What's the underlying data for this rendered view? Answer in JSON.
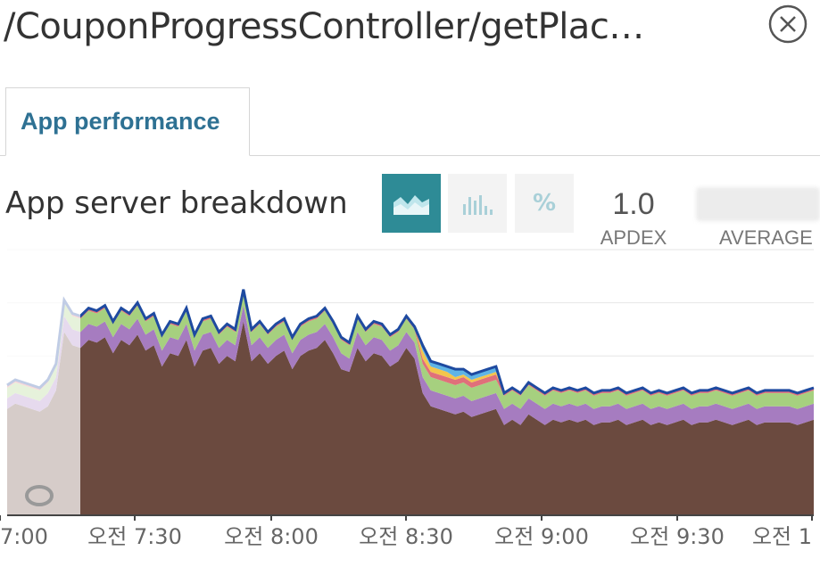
{
  "header": {
    "title": "/CouponProgressController/getPlac…",
    "close_icon": "close-circle-icon"
  },
  "tabs": [
    {
      "label": "App performance",
      "active": true
    }
  ],
  "section": {
    "title": "App server breakdown",
    "modes": [
      {
        "name": "area-chart-icon",
        "active": true
      },
      {
        "name": "bar-chart-icon",
        "active": false
      },
      {
        "name": "percent",
        "label": "%",
        "active": false
      }
    ]
  },
  "stats": {
    "apdex_value": "1.0",
    "apdex_label": "APDEX",
    "average_label": "AVERAGE"
  },
  "colors": {
    "accent": "#2e8b96",
    "tab_text": "#2e7193",
    "layer_base": "#6b4a3f",
    "layer_2": "#a67cc0",
    "layer_3": "#a6d07f",
    "layer_4": "#e0707a",
    "layer_5": "#f3c54c",
    "layer_6": "#5fb4e5",
    "top_line": "#1e4aa0"
  },
  "chart_data": {
    "type": "area",
    "stacked": true,
    "x_tick_labels": [
      "7:00",
      "오전 7:30",
      "오전 8:00",
      "오전 8:30",
      "오전 9:00",
      "오전 9:30",
      "오전 1"
    ],
    "grid": true,
    "ylim": [
      0,
      1
    ],
    "series": [
      {
        "values": [
          0.4,
          0.42,
          0.41,
          0.4,
          0.39,
          0.41,
          0.47,
          0.69,
          0.64,
          0.63,
          0.66,
          0.65,
          0.67,
          0.61,
          0.66,
          0.64,
          0.68,
          0.62,
          0.64,
          0.56,
          0.61,
          0.6,
          0.66,
          0.56,
          0.62,
          0.63,
          0.57,
          0.6,
          0.58,
          0.73,
          0.58,
          0.61,
          0.57,
          0.6,
          0.62,
          0.55,
          0.6,
          0.62,
          0.63,
          0.66,
          0.61,
          0.55,
          0.54,
          0.63,
          0.58,
          0.61,
          0.6,
          0.56,
          0.58,
          0.63,
          0.59,
          0.46,
          0.41,
          0.4,
          0.39,
          0.38,
          0.39,
          0.37,
          0.38,
          0.39,
          0.4,
          0.34,
          0.36,
          0.34,
          0.38,
          0.36,
          0.34,
          0.36,
          0.35,
          0.36,
          0.35,
          0.36,
          0.34,
          0.35,
          0.35,
          0.36,
          0.34,
          0.35,
          0.36,
          0.34,
          0.35,
          0.34,
          0.35,
          0.36,
          0.34,
          0.35,
          0.35,
          0.36,
          0.35,
          0.34,
          0.35,
          0.36,
          0.34,
          0.35,
          0.35,
          0.35,
          0.35,
          0.34,
          0.35,
          0.36
        ]
      },
      {
        "values": [
          0.04,
          0.04,
          0.04,
          0.04,
          0.04,
          0.05,
          0.05,
          0.06,
          0.06,
          0.06,
          0.06,
          0.06,
          0.06,
          0.06,
          0.06,
          0.06,
          0.06,
          0.06,
          0.06,
          0.06,
          0.06,
          0.06,
          0.06,
          0.06,
          0.06,
          0.06,
          0.06,
          0.06,
          0.06,
          0.06,
          0.06,
          0.06,
          0.06,
          0.06,
          0.06,
          0.06,
          0.06,
          0.06,
          0.06,
          0.06,
          0.06,
          0.06,
          0.05,
          0.06,
          0.06,
          0.06,
          0.06,
          0.06,
          0.06,
          0.06,
          0.06,
          0.06,
          0.06,
          0.06,
          0.06,
          0.06,
          0.06,
          0.06,
          0.06,
          0.06,
          0.06,
          0.06,
          0.06,
          0.06,
          0.06,
          0.06,
          0.06,
          0.06,
          0.06,
          0.06,
          0.06,
          0.06,
          0.06,
          0.06,
          0.06,
          0.06,
          0.06,
          0.06,
          0.06,
          0.06,
          0.06,
          0.06,
          0.06,
          0.06,
          0.06,
          0.06,
          0.06,
          0.06,
          0.06,
          0.06,
          0.06,
          0.06,
          0.06,
          0.06,
          0.06,
          0.06,
          0.06,
          0.06,
          0.06,
          0.06
        ]
      },
      {
        "values": [
          0.04,
          0.04,
          0.04,
          0.04,
          0.04,
          0.04,
          0.04,
          0.05,
          0.05,
          0.05,
          0.05,
          0.05,
          0.05,
          0.05,
          0.05,
          0.05,
          0.05,
          0.05,
          0.05,
          0.05,
          0.05,
          0.05,
          0.05,
          0.05,
          0.05,
          0.05,
          0.05,
          0.05,
          0.05,
          0.05,
          0.05,
          0.05,
          0.05,
          0.05,
          0.05,
          0.05,
          0.05,
          0.05,
          0.05,
          0.05,
          0.05,
          0.05,
          0.05,
          0.05,
          0.05,
          0.05,
          0.05,
          0.05,
          0.05,
          0.05,
          0.05,
          0.05,
          0.05,
          0.05,
          0.05,
          0.05,
          0.05,
          0.05,
          0.05,
          0.05,
          0.05,
          0.05,
          0.05,
          0.05,
          0.05,
          0.05,
          0.05,
          0.05,
          0.05,
          0.05,
          0.05,
          0.05,
          0.05,
          0.05,
          0.05,
          0.05,
          0.05,
          0.05,
          0.05,
          0.05,
          0.05,
          0.05,
          0.05,
          0.05,
          0.05,
          0.05,
          0.05,
          0.05,
          0.05,
          0.05,
          0.05,
          0.05,
          0.05,
          0.05,
          0.05,
          0.05,
          0.05,
          0.05,
          0.05,
          0.05
        ]
      },
      {
        "values": [
          0.01,
          0.01,
          0.01,
          0.01,
          0.01,
          0.01,
          0.01,
          0.01,
          0.01,
          0.01,
          0.01,
          0.01,
          0.01,
          0.01,
          0.01,
          0.01,
          0.01,
          0.01,
          0.01,
          0.01,
          0.01,
          0.01,
          0.01,
          0.01,
          0.01,
          0.01,
          0.01,
          0.01,
          0.01,
          0.01,
          0.01,
          0.01,
          0.01,
          0.01,
          0.01,
          0.01,
          0.01,
          0.01,
          0.01,
          0.01,
          0.01,
          0.01,
          0.01,
          0.01,
          0.01,
          0.01,
          0.01,
          0.01,
          0.01,
          0.01,
          0.01,
          0.02,
          0.02,
          0.02,
          0.02,
          0.02,
          0.02,
          0.02,
          0.02,
          0.02,
          0.02,
          0.01,
          0.01,
          0.01,
          0.01,
          0.01,
          0.01,
          0.01,
          0.01,
          0.01,
          0.01,
          0.01,
          0.01,
          0.01,
          0.01,
          0.01,
          0.01,
          0.01,
          0.01,
          0.01,
          0.01,
          0.01,
          0.01,
          0.01,
          0.01,
          0.01,
          0.01,
          0.01,
          0.01,
          0.01,
          0.01,
          0.01,
          0.01,
          0.01,
          0.01,
          0.01,
          0.01,
          0.01,
          0.01,
          0.01
        ]
      },
      {
        "values": [
          0.0,
          0.0,
          0.0,
          0.0,
          0.0,
          0.0,
          0.0,
          0.0,
          0.0,
          0.0,
          0.0,
          0.0,
          0.0,
          0.0,
          0.0,
          0.0,
          0.0,
          0.0,
          0.0,
          0.0,
          0.0,
          0.0,
          0.0,
          0.0,
          0.0,
          0.0,
          0.0,
          0.0,
          0.0,
          0.0,
          0.0,
          0.0,
          0.0,
          0.0,
          0.0,
          0.0,
          0.0,
          0.0,
          0.0,
          0.0,
          0.0,
          0.0,
          0.0,
          0.0,
          0.0,
          0.0,
          0.0,
          0.0,
          0.0,
          0.0,
          0.0,
          0.03,
          0.02,
          0.02,
          0.02,
          0.01,
          0.01,
          0.01,
          0.01,
          0.01,
          0.01,
          0.0,
          0.0,
          0.0,
          0.0,
          0.0,
          0.0,
          0.0,
          0.0,
          0.0,
          0.0,
          0.0,
          0.0,
          0.0,
          0.0,
          0.0,
          0.0,
          0.0,
          0.0,
          0.0,
          0.0,
          0.0,
          0.0,
          0.0,
          0.0,
          0.0,
          0.0,
          0.0,
          0.0,
          0.0,
          0.0,
          0.0,
          0.0,
          0.0,
          0.0,
          0.0,
          0.0,
          0.0,
          0.0,
          0.0
        ]
      },
      {
        "values": [
          0.0,
          0.0,
          0.0,
          0.0,
          0.0,
          0.0,
          0.0,
          0.0,
          0.0,
          0.0,
          0.0,
          0.0,
          0.0,
          0.0,
          0.0,
          0.0,
          0.0,
          0.0,
          0.0,
          0.0,
          0.0,
          0.0,
          0.0,
          0.0,
          0.0,
          0.0,
          0.0,
          0.0,
          0.0,
          0.0,
          0.0,
          0.0,
          0.0,
          0.0,
          0.0,
          0.0,
          0.0,
          0.0,
          0.0,
          0.0,
          0.0,
          0.0,
          0.0,
          0.0,
          0.0,
          0.0,
          0.0,
          0.0,
          0.0,
          0.0,
          0.0,
          0.02,
          0.02,
          0.02,
          0.02,
          0.03,
          0.02,
          0.02,
          0.02,
          0.02,
          0.02,
          0.0,
          0.0,
          0.0,
          0.0,
          0.0,
          0.0,
          0.0,
          0.0,
          0.0,
          0.0,
          0.0,
          0.0,
          0.0,
          0.0,
          0.0,
          0.0,
          0.0,
          0.0,
          0.0,
          0.0,
          0.0,
          0.0,
          0.0,
          0.0,
          0.0,
          0.0,
          0.0,
          0.0,
          0.0,
          0.0,
          0.0,
          0.0,
          0.0,
          0.0,
          0.0,
          0.0,
          0.0,
          0.0,
          0.0
        ]
      }
    ]
  }
}
